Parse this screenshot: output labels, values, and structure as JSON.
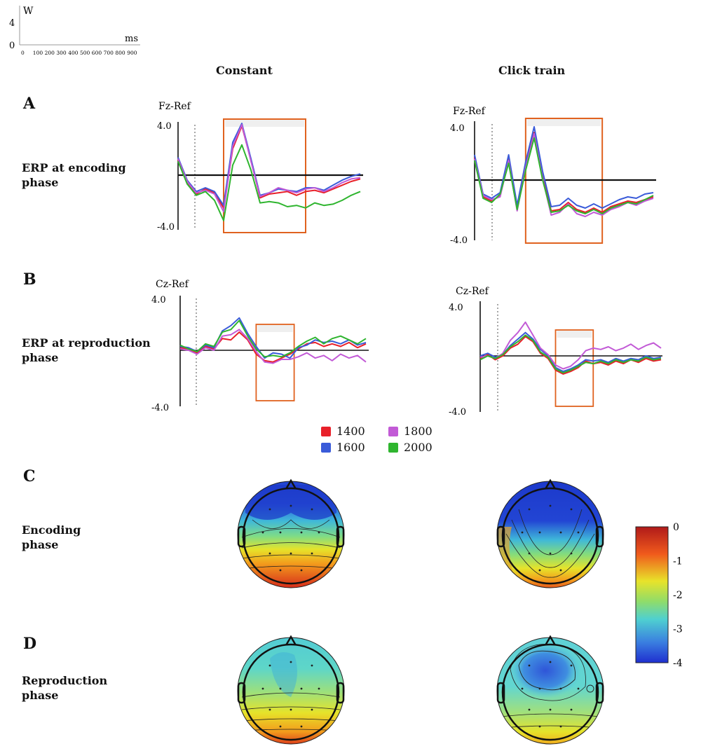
{
  "scale_bar": {
    "y_unit": "W",
    "y_ticks": [
      "4",
      "0"
    ],
    "x_unit": "ms",
    "x_ticks": [
      "0",
      "100",
      "200",
      "300",
      "400",
      "500",
      "600",
      "700",
      "800",
      "900"
    ]
  },
  "columns": [
    "Constant",
    "Click train"
  ],
  "panels": {
    "A": {
      "letter": "A",
      "label_line1": "ERP at encoding",
      "label_line2": "phase"
    },
    "B": {
      "letter": "B",
      "label_line1": "ERP at reproduction",
      "label_line2": "phase"
    },
    "C": {
      "letter": "C",
      "label_line1": "Encoding",
      "label_line2": "phase"
    },
    "D": {
      "letter": "D",
      "label_line1": "Reproduction",
      "label_line2": "phase"
    }
  },
  "legend": [
    {
      "label": "1400",
      "color": "#e8202a"
    },
    {
      "label": "1600",
      "color": "#3a5bd9"
    },
    {
      "label": "1800",
      "color": "#c25ad6"
    },
    {
      "label": "2000",
      "color": "#2fb52f"
    }
  ],
  "colorbar": {
    "ticks": [
      "0",
      "-1",
      "-2",
      "-3",
      "-4"
    ],
    "max": 0,
    "min": -4
  },
  "chart_data": [
    {
      "type": "line",
      "channel": "Fz-Ref",
      "condition": "Constant",
      "phase": "encoding",
      "y_tick_labels": [
        "4.0",
        "-4.0"
      ],
      "ylim": [
        -4,
        4
      ],
      "x": [
        0,
        1,
        2,
        3,
        4,
        5,
        6,
        7,
        8,
        9,
        10,
        11,
        12,
        13,
        14,
        15,
        16,
        17,
        18,
        19,
        20
      ],
      "series": [
        {
          "name": "1400",
          "values": [
            1.2,
            -0.6,
            -1.5,
            -1.1,
            -1.4,
            -2.6,
            2.1,
            3.9,
            1.2,
            -1.8,
            -1.5,
            -1.4,
            -1.3,
            -1.6,
            -1.3,
            -1.2,
            -1.4,
            -1.1,
            -0.8,
            -0.5,
            -0.3
          ]
        },
        {
          "name": "1600",
          "values": [
            1.4,
            -0.4,
            -1.3,
            -1.0,
            -1.3,
            -2.4,
            2.6,
            4.1,
            1.3,
            -1.6,
            -1.4,
            -1.1,
            -1.2,
            -1.3,
            -1.0,
            -1.0,
            -1.2,
            -0.8,
            -0.4,
            -0.1,
            0.1
          ]
        },
        {
          "name": "1800",
          "values": [
            1.3,
            -0.5,
            -1.4,
            -1.2,
            -1.5,
            -2.9,
            2.3,
            4.0,
            1.1,
            -1.7,
            -1.4,
            -1.0,
            -1.2,
            -1.4,
            -1.1,
            -1.0,
            -1.3,
            -1.0,
            -0.6,
            -0.3,
            -0.2
          ]
        },
        {
          "name": "2000",
          "values": [
            1.1,
            -0.7,
            -1.6,
            -1.3,
            -2.0,
            -3.6,
            0.8,
            2.4,
            0.4,
            -2.2,
            -2.1,
            -2.2,
            -2.5,
            -2.4,
            -2.6,
            -2.2,
            -2.4,
            -2.3,
            -2.0,
            -1.6,
            -1.3
          ]
        }
      ],
      "highlight_box": [
        5.0,
        14.0
      ]
    },
    {
      "type": "line",
      "channel": "Fz-Ref",
      "condition": "Click train",
      "phase": "encoding",
      "y_tick_labels": [
        "4.0",
        "-4.0"
      ],
      "ylim": [
        -4,
        4
      ],
      "x": [
        0,
        1,
        2,
        3,
        4,
        5,
        6,
        7,
        8,
        9,
        10,
        11,
        12,
        13,
        14,
        15,
        16,
        17,
        18,
        19,
        20,
        21
      ],
      "series": [
        {
          "name": "1400",
          "values": [
            1.6,
            -1.2,
            -1.5,
            -1.1,
            1.5,
            -2.0,
            1.0,
            3.4,
            0.2,
            -2.2,
            -2.1,
            -1.6,
            -2.1,
            -2.3,
            -2.0,
            -2.3,
            -1.9,
            -1.7,
            -1.5,
            -1.6,
            -1.4,
            -1.2
          ]
        },
        {
          "name": "1600",
          "values": [
            1.8,
            -1.0,
            -1.3,
            -0.9,
            1.8,
            -1.8,
            1.3,
            3.8,
            0.6,
            -1.9,
            -1.8,
            -1.3,
            -1.8,
            -2.0,
            -1.7,
            -2.0,
            -1.7,
            -1.4,
            -1.2,
            -1.3,
            -1.0,
            -0.9
          ]
        },
        {
          "name": "1800",
          "values": [
            1.5,
            -1.1,
            -1.4,
            -1.2,
            1.4,
            -2.2,
            0.9,
            3.3,
            0.1,
            -2.5,
            -2.3,
            -1.7,
            -2.4,
            -2.6,
            -2.3,
            -2.5,
            -2.1,
            -1.9,
            -1.6,
            -1.8,
            -1.5,
            -1.3
          ]
        },
        {
          "name": "2000",
          "values": [
            1.4,
            -1.3,
            -1.6,
            -1.0,
            1.2,
            -2.1,
            0.7,
            3.0,
            0.0,
            -2.3,
            -2.2,
            -1.8,
            -2.2,
            -2.4,
            -2.1,
            -2.4,
            -2.0,
            -1.8,
            -1.6,
            -1.7,
            -1.4,
            -1.1
          ]
        }
      ],
      "highlight_box": [
        6.0,
        15.0
      ]
    },
    {
      "type": "line",
      "channel": "Cz-Ref",
      "condition": "Constant",
      "phase": "reproduction",
      "y_tick_labels": [
        "4.0",
        "-4.0"
      ],
      "ylim": [
        -4,
        4
      ],
      "x": [
        0,
        1,
        2,
        3,
        4,
        5,
        6,
        7,
        8,
        9,
        10,
        11,
        12,
        13,
        14,
        15,
        16,
        17,
        18,
        19,
        20,
        21,
        22
      ],
      "series": [
        {
          "name": "1400",
          "values": [
            0.2,
            0.1,
            -0.2,
            0.3,
            0.1,
            0.9,
            0.8,
            1.4,
            0.8,
            -0.3,
            -0.8,
            -0.9,
            -0.6,
            -0.3,
            0.1,
            0.5,
            0.6,
            0.3,
            0.5,
            0.3,
            0.6,
            0.2,
            0.5
          ]
        },
        {
          "name": "1600",
          "values": [
            0.3,
            0.2,
            -0.1,
            0.4,
            0.2,
            1.5,
            1.9,
            2.5,
            1.3,
            0.3,
            -0.6,
            -0.2,
            -0.3,
            -0.6,
            0.2,
            0.4,
            0.8,
            0.6,
            0.7,
            0.5,
            0.8,
            0.4,
            0.6
          ]
        },
        {
          "name": "1800",
          "values": [
            0.1,
            0.0,
            -0.3,
            0.2,
            0.0,
            1.1,
            1.2,
            1.6,
            0.9,
            -0.1,
            -0.9,
            -1.0,
            -0.7,
            -0.7,
            -0.5,
            -0.2,
            -0.6,
            -0.4,
            -0.8,
            -0.3,
            -0.6,
            -0.4,
            -0.9
          ]
        },
        {
          "name": "2000",
          "values": [
            0.4,
            0.1,
            -0.1,
            0.5,
            0.3,
            1.4,
            1.6,
            2.3,
            1.1,
            0.1,
            -0.5,
            -0.4,
            -0.5,
            -0.2,
            0.3,
            0.7,
            1.0,
            0.5,
            0.9,
            1.1,
            0.8,
            0.5,
            0.9
          ]
        }
      ],
      "highlight_box": [
        9.0,
        13.5
      ]
    },
    {
      "type": "line",
      "channel": "Cz-Ref",
      "condition": "Click train",
      "phase": "reproduction",
      "y_tick_labels": [
        "4.0",
        "-4.0"
      ],
      "ylim": [
        -4,
        4
      ],
      "x": [
        0,
        1,
        2,
        3,
        4,
        5,
        6,
        7,
        8,
        9,
        10,
        11,
        12,
        13,
        14,
        15,
        16,
        17,
        18,
        19,
        20,
        21,
        22,
        23,
        24
      ],
      "series": [
        {
          "name": "1400",
          "values": [
            -0.2,
            0.1,
            -0.3,
            0.0,
            0.6,
            0.9,
            1.5,
            1.1,
            0.2,
            -0.2,
            -1.1,
            -1.4,
            -1.2,
            -0.9,
            -0.4,
            -0.6,
            -0.5,
            -0.7,
            -0.4,
            -0.6,
            -0.3,
            -0.5,
            -0.2,
            -0.4,
            -0.3
          ]
        },
        {
          "name": "1600",
          "values": [
            0.0,
            0.2,
            -0.1,
            0.1,
            0.8,
            1.3,
            1.8,
            1.3,
            0.5,
            0.0,
            -0.9,
            -1.2,
            -1.0,
            -0.7,
            -0.3,
            -0.4,
            -0.3,
            -0.5,
            -0.2,
            -0.4,
            -0.2,
            -0.3,
            0.0,
            -0.2,
            -0.1
          ]
        },
        {
          "name": "1800",
          "values": [
            -0.1,
            0.0,
            -0.2,
            0.2,
            1.2,
            1.8,
            2.6,
            1.6,
            0.6,
            0.1,
            -0.7,
            -1.0,
            -0.8,
            -0.3,
            0.4,
            0.6,
            0.5,
            0.7,
            0.4,
            0.6,
            0.9,
            0.5,
            0.8,
            1.0,
            0.6
          ]
        },
        {
          "name": "2000",
          "values": [
            -0.3,
            0.0,
            -0.2,
            0.1,
            0.7,
            1.1,
            1.6,
            1.2,
            0.3,
            -0.1,
            -1.0,
            -1.3,
            -1.1,
            -0.8,
            -0.5,
            -0.6,
            -0.4,
            -0.6,
            -0.3,
            -0.5,
            -0.3,
            -0.4,
            -0.1,
            -0.3,
            -0.2
          ]
        }
      ],
      "highlight_box": [
        10.0,
        15.0
      ]
    }
  ]
}
